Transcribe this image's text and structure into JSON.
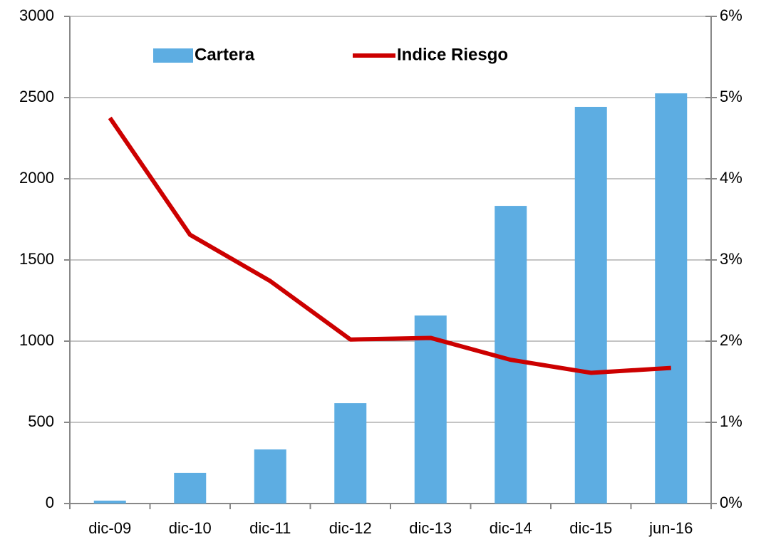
{
  "chart_data": {
    "type": "bar_line",
    "categories": [
      "dic-09",
      "dic-10",
      "dic-11",
      "dic-12",
      "dic-13",
      "dic-14",
      "dic-15",
      "jun-16"
    ],
    "series": [
      {
        "name": "Cartera",
        "type": "bar",
        "color": "#5dade2",
        "values": [
          18,
          189,
          333,
          618,
          1158,
          1833,
          2443,
          2526
        ]
      },
      {
        "name": "Indice Riesgo",
        "type": "line",
        "axis": "y2",
        "color": "#cc0000",
        "values": [
          4.75,
          3.31,
          2.74,
          2.02,
          2.04,
          1.77,
          1.61,
          1.67
        ]
      }
    ],
    "ylim": [
      0,
      3000
    ],
    "yticks": [
      0,
      500,
      1000,
      1500,
      2000,
      2500,
      3000
    ],
    "y2lim": [
      0,
      6
    ],
    "y2ticks": [
      {
        "value": 0,
        "label": "0%"
      },
      {
        "value": 1,
        "label": "1%"
      },
      {
        "value": 2,
        "label": "2%"
      },
      {
        "value": 3,
        "label": "3%"
      },
      {
        "value": 4,
        "label": "4%"
      },
      {
        "value": 5,
        "label": "5%"
      },
      {
        "value": 6,
        "label": "6%"
      }
    ],
    "grid": true,
    "legend": "top"
  }
}
